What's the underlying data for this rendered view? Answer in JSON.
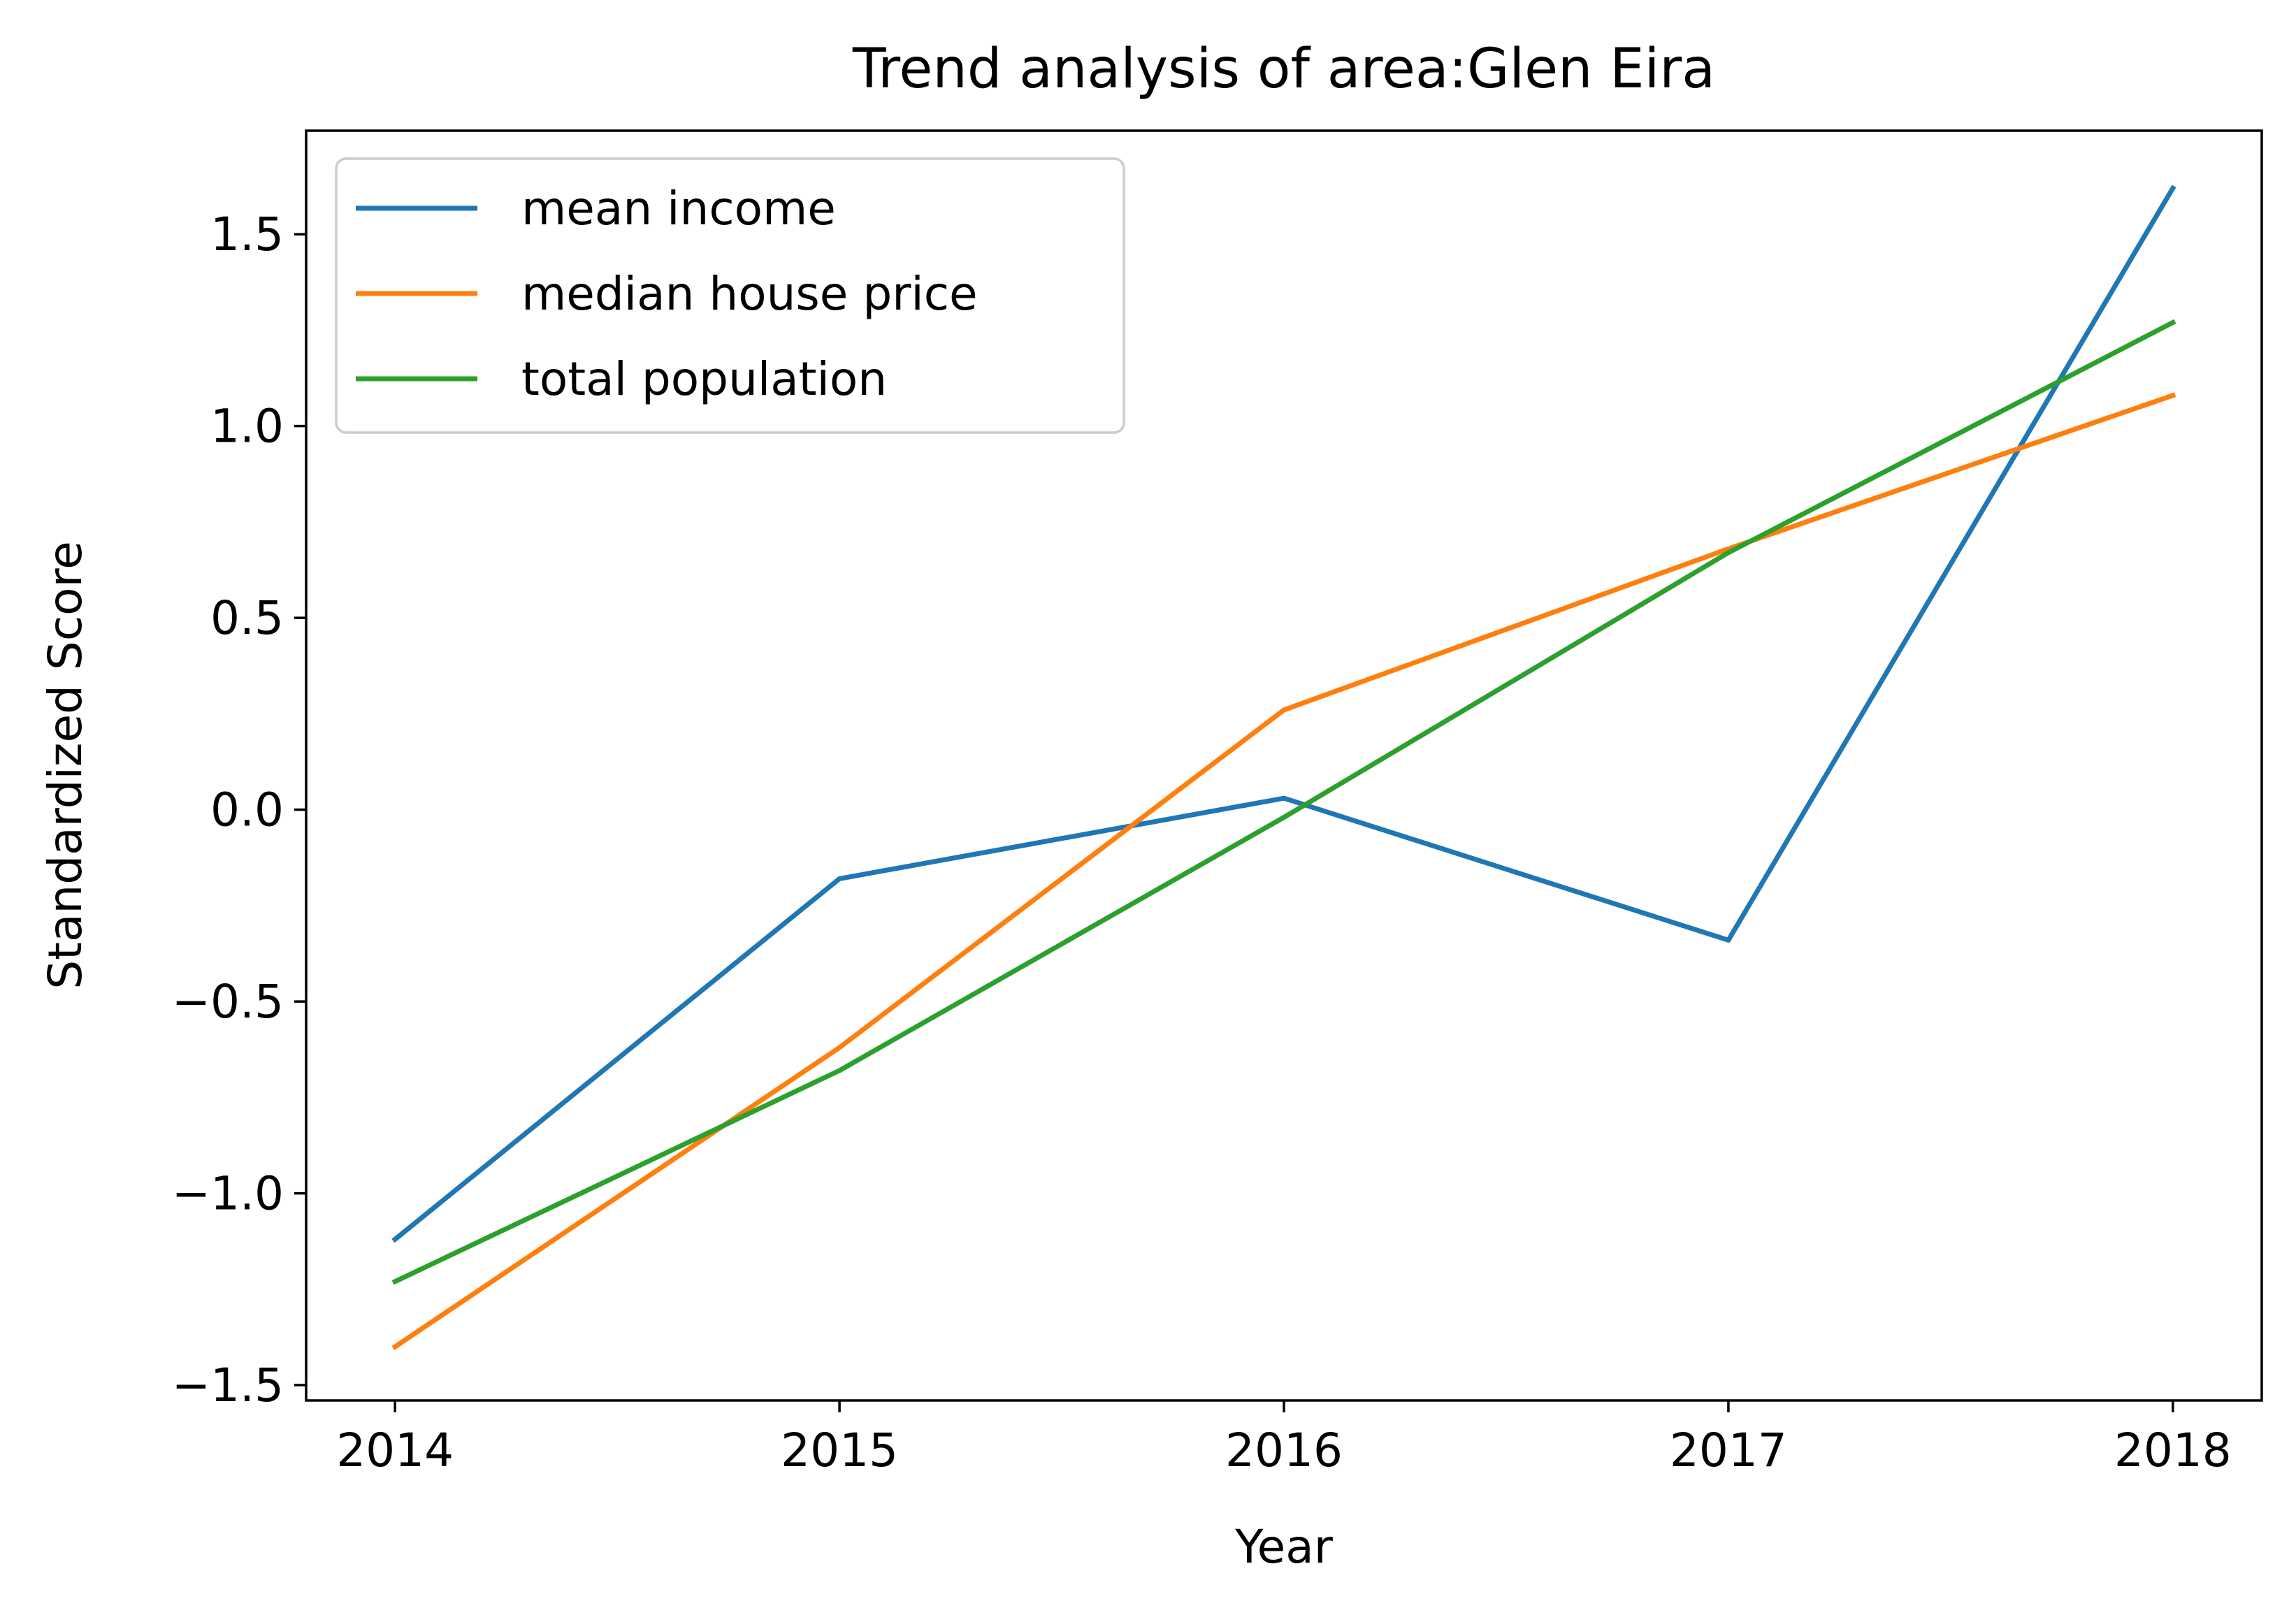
{
  "chart_data": {
    "type": "line",
    "title": "Trend analysis of area:Glen Eira",
    "xlabel": "Year",
    "ylabel": "Standardized Score",
    "x": [
      2014,
      2015,
      2016,
      2017,
      2018
    ],
    "x_ticks": [
      "2014",
      "2015",
      "2016",
      "2017",
      "2018"
    ],
    "y_ticks": [
      {
        "value": 1.5,
        "label": "1.5"
      },
      {
        "value": 1.0,
        "label": "1.0"
      },
      {
        "value": 0.5,
        "label": "0.5"
      },
      {
        "value": 0.0,
        "label": "0.0"
      },
      {
        "value": -0.5,
        "label": "−0.5"
      },
      {
        "value": -1.0,
        "label": "−1.0"
      },
      {
        "value": -1.5,
        "label": "−1.5"
      }
    ],
    "xlim": [
      2013.8,
      2018.2
    ],
    "ylim": [
      -1.54,
      1.77
    ],
    "grid": false,
    "legend_position": "top-left",
    "series": [
      {
        "name": "mean income",
        "color": "#1f77b4",
        "values": [
          -1.12,
          -0.18,
          0.03,
          -0.34,
          1.62
        ]
      },
      {
        "name": "median house price",
        "color": "#ff7f0e",
        "values": [
          -1.4,
          -0.62,
          0.26,
          0.68,
          1.08
        ]
      },
      {
        "name": "total population",
        "color": "#2ca02c",
        "values": [
          -1.23,
          -0.68,
          -0.02,
          0.67,
          1.27
        ]
      }
    ]
  }
}
